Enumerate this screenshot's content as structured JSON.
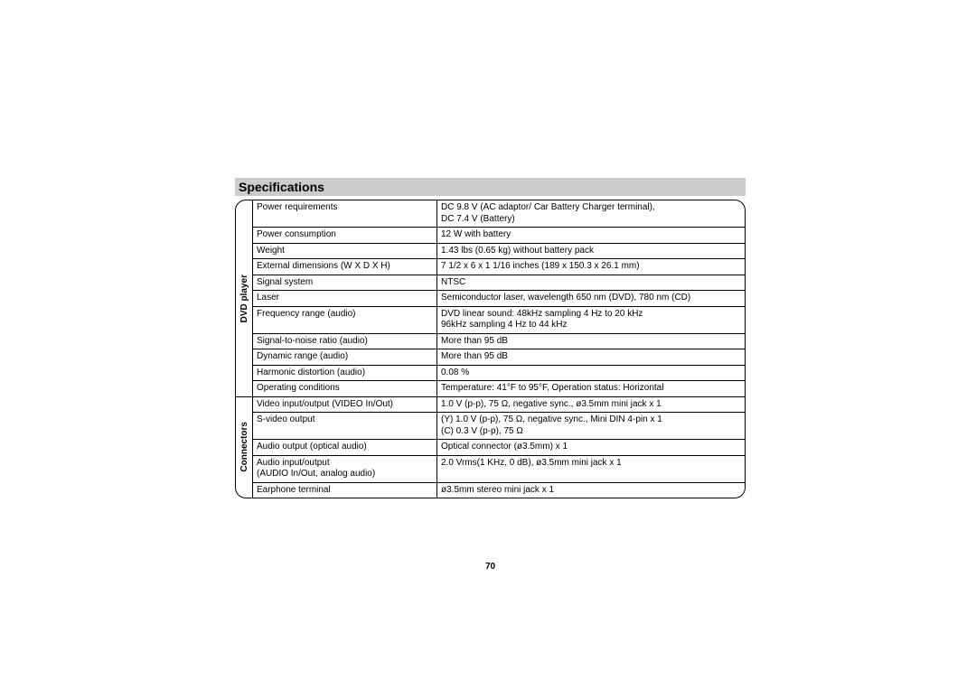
{
  "heading": "Specifications",
  "page_number": "70",
  "sections": [
    {
      "label": "DVD player",
      "rows": [
        {
          "name": "Power requirements",
          "value": "DC 9.8 V (AC adaptor/ Car Battery Charger terminal),\nDC 7.4 V (Battery)"
        },
        {
          "name": "Power consumption",
          "value": "12 W with battery"
        },
        {
          "name": "Weight",
          "value": "1.43 lbs (0.65 kg) without battery pack"
        },
        {
          "name": "External dimensions (W X D X H)",
          "value": "7 1/2 x 6 x 1 1/16 inches (189 x 150.3 x 26.1 mm)"
        },
        {
          "name": "Signal system",
          "value": "NTSC"
        },
        {
          "name": "Laser",
          "value": "Semiconductor laser, wavelength 650 nm (DVD), 780 nm (CD)"
        },
        {
          "name": "Frequency range (audio)",
          "value": "DVD linear sound: 48kHz sampling 4 Hz to 20 kHz\n                              96kHz sampling 4 Hz to 44 kHz"
        },
        {
          "name": "Signal-to-noise ratio (audio)",
          "value": "More than 95 dB"
        },
        {
          "name": "Dynamic range (audio)",
          "value": "More than 95 dB"
        },
        {
          "name": "Harmonic distortion (audio)",
          "value": "0.08 %"
        },
        {
          "name": "Operating conditions",
          "value": "Temperature: 41°F to 95°F, Operation status: Horizontal"
        }
      ]
    },
    {
      "label": "Connectors",
      "rows": [
        {
          "name": "Video input/output (VIDEO In/Out)",
          "value": "1.0 V (p-p), 75 Ω, negative sync., ø3.5mm mini jack x 1"
        },
        {
          "name": "S-video output",
          "value": "(Y) 1.0 V (p-p), 75 Ω, negative sync., Mini DIN 4-pin x 1\n(C) 0.3 V (p-p), 75 Ω"
        },
        {
          "name": "Audio output (optical audio)",
          "value": "Optical connector (ø3.5mm) x 1"
        },
        {
          "name": "Audio input/output\n(AUDIO In/Out, analog audio)",
          "value": "2.0 Vrms(1 KHz, 0 dB), ø3.5mm mini jack x 1"
        },
        {
          "name": "Earphone terminal",
          "value": "ø3.5mm stereo mini jack x 1"
        }
      ]
    }
  ]
}
